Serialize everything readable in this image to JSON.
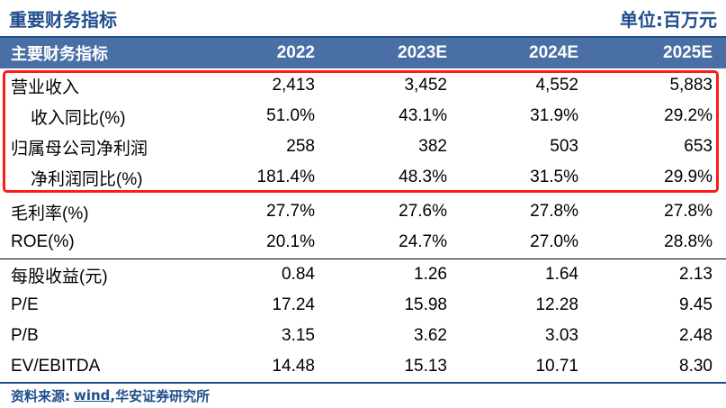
{
  "title": "重要财务指标",
  "unit": "单位:百万元",
  "header": [
    "主要财务指标",
    "2022",
    "2023E",
    "2024E",
    "2025E"
  ],
  "rows": [
    {
      "label": "营业收入",
      "values": [
        "2,413",
        "3,452",
        "4,552",
        "5,883"
      ]
    },
    {
      "label": "收入同比(%)",
      "values": [
        "51.0%",
        "43.1%",
        "31.9%",
        "29.2%"
      ]
    },
    {
      "label": "归属母公司净利润",
      "values": [
        "258",
        "382",
        "503",
        "653"
      ]
    },
    {
      "label": "净利润同比(%)",
      "values": [
        "181.4%",
        "48.3%",
        "31.5%",
        "29.9%"
      ]
    },
    {
      "label": "毛利率(%)",
      "values": [
        "27.7%",
        "27.6%",
        "27.8%",
        "27.8%"
      ]
    },
    {
      "label": "ROE(%)",
      "values": [
        "20.1%",
        "24.7%",
        "27.0%",
        "28.8%"
      ]
    },
    {
      "label": "每股收益(元)",
      "values": [
        "0.84",
        "1.26",
        "1.64",
        "2.13"
      ]
    },
    {
      "label": "P/E",
      "values": [
        "17.24",
        "15.98",
        "12.28",
        "9.45"
      ]
    },
    {
      "label": "P/B",
      "values": [
        "3.15",
        "3.62",
        "3.03",
        "2.48"
      ]
    },
    {
      "label": "EV/EBITDA",
      "values": [
        "14.48",
        "15.13",
        "10.71",
        "8.30"
      ]
    }
  ],
  "source": {
    "prefix": "资料来源:",
    "link": "wind",
    "suffix": ",华安证券研究所"
  },
  "colors": {
    "accent": "#1f4e8c",
    "header_bg": "#4a6fa5",
    "highlight": "#ff1a1a"
  }
}
